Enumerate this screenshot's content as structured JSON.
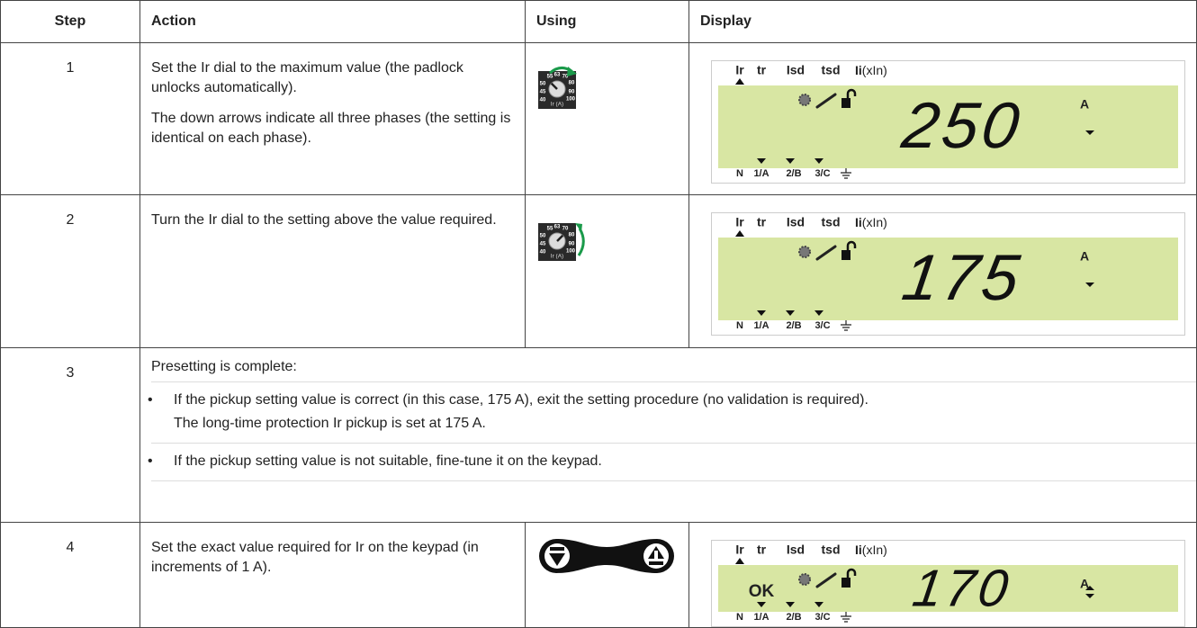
{
  "table": {
    "headers": [
      "Step",
      "Action",
      "Using",
      "Display"
    ],
    "rows": [
      {
        "step": "1",
        "action": [
          "Set the Ir dial to the maximum value (the padlock unlocks automatically).",
          "The down arrows indicate all three phases (the setting is identical on each phase)."
        ],
        "display": {
          "reading": "250"
        }
      },
      {
        "step": "2",
        "action": [
          "Turn the Ir dial to the setting above the value required."
        ],
        "display": {
          "reading": "175"
        }
      },
      {
        "step": "3",
        "intro": "Presetting is complete:",
        "bullets": [
          [
            "If the pickup setting value is correct (in this case, 175 A), exit the setting procedure (no validation is required).",
            "The long-time protection Ir pickup is set at 175 A."
          ],
          [
            "If the pickup setting value is not suitable, fine-tune it on the keypad."
          ]
        ]
      },
      {
        "step": "4",
        "action": [
          "Set the exact value required for Ir on the keypad (in increments of 1 A)."
        ],
        "display": {
          "reading": "170",
          "status": "OK"
        }
      }
    ]
  },
  "lcd": {
    "top_labels": [
      "Ir",
      "tr",
      "Isd",
      "tsd"
    ],
    "ii": "Ii",
    "ii_suffix": "(xIn)",
    "unit": "A",
    "phases": [
      "N",
      "1/A",
      "2/B",
      "3/C"
    ]
  },
  "dial": {
    "marks": [
      "55",
      "63",
      "70",
      "80",
      "90",
      "100",
      "40",
      "45",
      "50"
    ],
    "label": "Ir (A)"
  }
}
